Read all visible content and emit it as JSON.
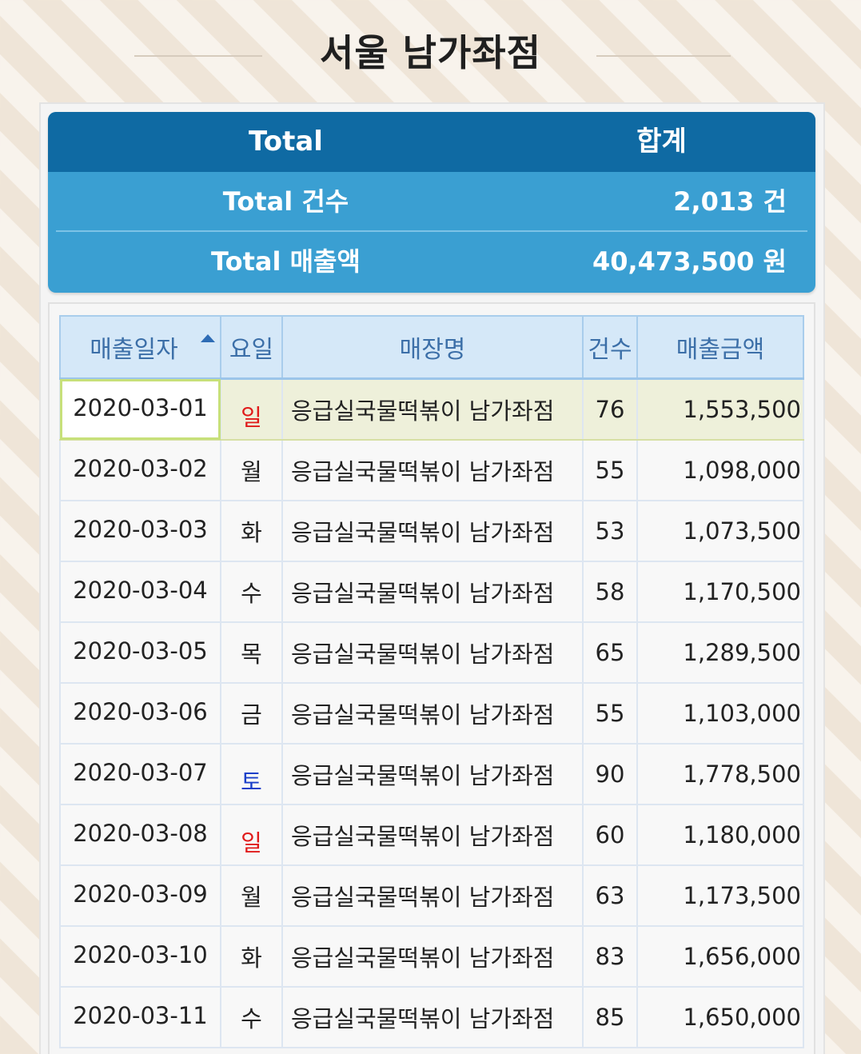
{
  "page": {
    "title": "서울 남가좌점"
  },
  "summary": {
    "header": {
      "col1": "Total",
      "col2": "합계"
    },
    "rows": [
      {
        "label": "Total 건수",
        "value": "2,013 건"
      },
      {
        "label": "Total 매출액",
        "value": "40,473,500 원"
      }
    ]
  },
  "table": {
    "headers": {
      "date": "매출일자",
      "day": "요일",
      "store": "매장명",
      "count": "건수",
      "amount": "매출금액"
    },
    "sort": {
      "column": "date",
      "direction": "ascending"
    },
    "rows": [
      {
        "date": "2020-03-01",
        "day": "일",
        "store": "응급실국물떡볶이 남가좌점",
        "count": "76",
        "amount": "1,553,500",
        "day_type": "sun",
        "selected": true
      },
      {
        "date": "2020-03-02",
        "day": "월",
        "store": "응급실국물떡볶이 남가좌점",
        "count": "55",
        "amount": "1,098,000",
        "day_type": "weekday"
      },
      {
        "date": "2020-03-03",
        "day": "화",
        "store": "응급실국물떡볶이 남가좌점",
        "count": "53",
        "amount": "1,073,500",
        "day_type": "weekday"
      },
      {
        "date": "2020-03-04",
        "day": "수",
        "store": "응급실국물떡볶이 남가좌점",
        "count": "58",
        "amount": "1,170,500",
        "day_type": "weekday"
      },
      {
        "date": "2020-03-05",
        "day": "목",
        "store": "응급실국물떡볶이 남가좌점",
        "count": "65",
        "amount": "1,289,500",
        "day_type": "weekday"
      },
      {
        "date": "2020-03-06",
        "day": "금",
        "store": "응급실국물떡볶이 남가좌점",
        "count": "55",
        "amount": "1,103,000",
        "day_type": "weekday"
      },
      {
        "date": "2020-03-07",
        "day": "토",
        "store": "응급실국물떡볶이 남가좌점",
        "count": "90",
        "amount": "1,778,500",
        "day_type": "sat"
      },
      {
        "date": "2020-03-08",
        "day": "일",
        "store": "응급실국물떡볶이 남가좌점",
        "count": "60",
        "amount": "1,180,000",
        "day_type": "sun"
      },
      {
        "date": "2020-03-09",
        "day": "월",
        "store": "응급실국물떡볶이 남가좌점",
        "count": "63",
        "amount": "1,173,500",
        "day_type": "weekday"
      },
      {
        "date": "2020-03-10",
        "day": "화",
        "store": "응급실국물떡볶이 남가좌점",
        "count": "83",
        "amount": "1,656,000",
        "day_type": "weekday"
      },
      {
        "date": "2020-03-11",
        "day": "수",
        "store": "응급실국물떡볶이 남가좌점",
        "count": "85",
        "amount": "1,650,000",
        "day_type": "weekday"
      }
    ]
  },
  "colors": {
    "summary_header": "#0f6aa3",
    "summary_body": "#3a9fd2",
    "amount_text": "#2546c8",
    "sunday": "#e01a1a",
    "saturday": "#1a3fc9"
  }
}
